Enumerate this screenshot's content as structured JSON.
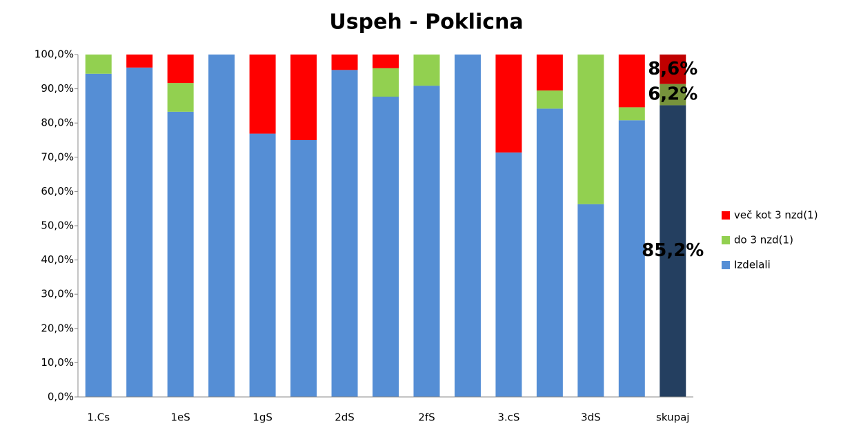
{
  "chart_data": {
    "type": "stacked_bar",
    "title": "Uspeh - Poklicna",
    "categories": [
      "1.Cs",
      null,
      "1eS",
      null,
      "1gS",
      null,
      "2dS",
      null,
      "2fS",
      null,
      "3.cS",
      null,
      "3dS",
      null,
      "skupaj"
    ],
    "series": [
      {
        "name": "Izdelali",
        "color": "#558ed5",
        "point_colors": {
          "14": "#243f60"
        },
        "values": [
          94.4,
          96.2,
          83.3,
          100,
          76.9,
          75,
          95.5,
          87.7,
          90.9,
          100,
          71.4,
          84.2,
          56.3,
          80.8,
          85.2
        ],
        "value_labels": [
          null,
          null,
          null,
          null,
          null,
          null,
          null,
          null,
          null,
          null,
          null,
          null,
          null,
          null,
          "85,2%"
        ]
      },
      {
        "name": "do 3 nzd(1)",
        "color": "#92d050",
        "point_colors": {
          "14": "#77933c"
        },
        "values": [
          5.6,
          0,
          8.4,
          0,
          0,
          0,
          0,
          8.3,
          9.1,
          0,
          0,
          5.3,
          43.7,
          3.8,
          6.2
        ],
        "value_labels": [
          null,
          null,
          null,
          null,
          null,
          null,
          null,
          null,
          null,
          null,
          null,
          null,
          null,
          null,
          "6,2%"
        ]
      },
      {
        "name": "več kot 3 nzd(1)",
        "color": "#ff0000",
        "point_colors": {
          "14": "#c00000"
        },
        "values": [
          0,
          3.8,
          8.3,
          0,
          23.1,
          25,
          4.5,
          4.0,
          0,
          0,
          28.6,
          10.5,
          0,
          15.4,
          8.6
        ],
        "value_labels": [
          null,
          null,
          null,
          null,
          null,
          null,
          null,
          null,
          null,
          null,
          null,
          null,
          null,
          null,
          "8,6%"
        ]
      }
    ],
    "ylim": [
      0,
      100
    ],
    "yticks": [
      {
        "value": 0,
        "label": "0,0%"
      },
      {
        "value": 10,
        "label": "10,0%"
      },
      {
        "value": 20,
        "label": "20,0%"
      },
      {
        "value": 30,
        "label": "30,0%"
      },
      {
        "value": 40,
        "label": "40,0%"
      },
      {
        "value": 50,
        "label": "50,0%"
      },
      {
        "value": 60,
        "label": "60,0%"
      },
      {
        "value": 70,
        "label": "70,0%"
      },
      {
        "value": 80,
        "label": "80,0%"
      },
      {
        "value": 90,
        "label": "90,0%"
      },
      {
        "value": 100,
        "label": "100,0%"
      }
    ],
    "grid": false,
    "legend": "right"
  }
}
